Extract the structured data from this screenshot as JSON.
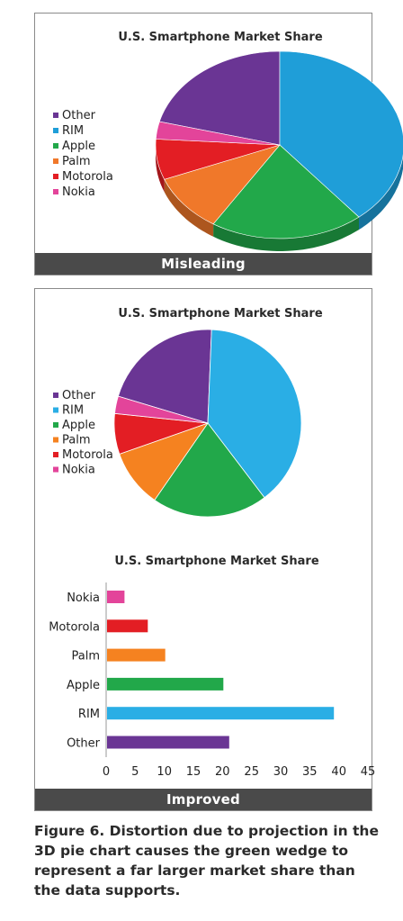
{
  "chart_data": [
    {
      "type": "pie",
      "style": "3d",
      "title": "U.S. Smartphone Market Share",
      "legend_position": "left",
      "categories": [
        "Other",
        "RIM",
        "Apple",
        "Palm",
        "Motorola",
        "Nokia"
      ],
      "values": [
        21,
        39,
        20,
        10,
        7,
        3
      ],
      "colors": [
        "#6a3594",
        "#1f9ed8",
        "#22a84a",
        "#f0782a",
        "#e31e24",
        "#e3449a"
      ],
      "footer": "Misleading"
    },
    {
      "type": "pie",
      "title": "U.S. Smartphone Market Share",
      "legend_position": "left",
      "categories": [
        "Other",
        "RIM",
        "Apple",
        "Palm",
        "Motorola",
        "Nokia"
      ],
      "values": [
        21,
        39,
        20,
        10,
        7,
        3
      ],
      "colors": [
        "#6a3594",
        "#2aaee5",
        "#22a84a",
        "#f58220",
        "#e31e24",
        "#e3449a"
      ]
    },
    {
      "type": "bar",
      "orientation": "horizontal",
      "title": "U.S. Smartphone Market Share",
      "categories": [
        "Nokia",
        "Motorola",
        "Palm",
        "Apple",
        "RIM",
        "Other"
      ],
      "values": [
        3,
        7,
        10,
        20,
        39,
        21
      ],
      "colors": [
        "#e3449a",
        "#e31e24",
        "#f58220",
        "#22a84a",
        "#2aaee5",
        "#6a3594"
      ],
      "xlim": [
        0,
        45
      ],
      "xticks": [
        0,
        5,
        10,
        15,
        20,
        25,
        30,
        35,
        40,
        45
      ],
      "grid": false,
      "footer": "Improved"
    }
  ],
  "caption": "Figure 6. Distortion due to projection in the 3D pie chart causes the green wedge to represent a far larger market share than the data supports."
}
